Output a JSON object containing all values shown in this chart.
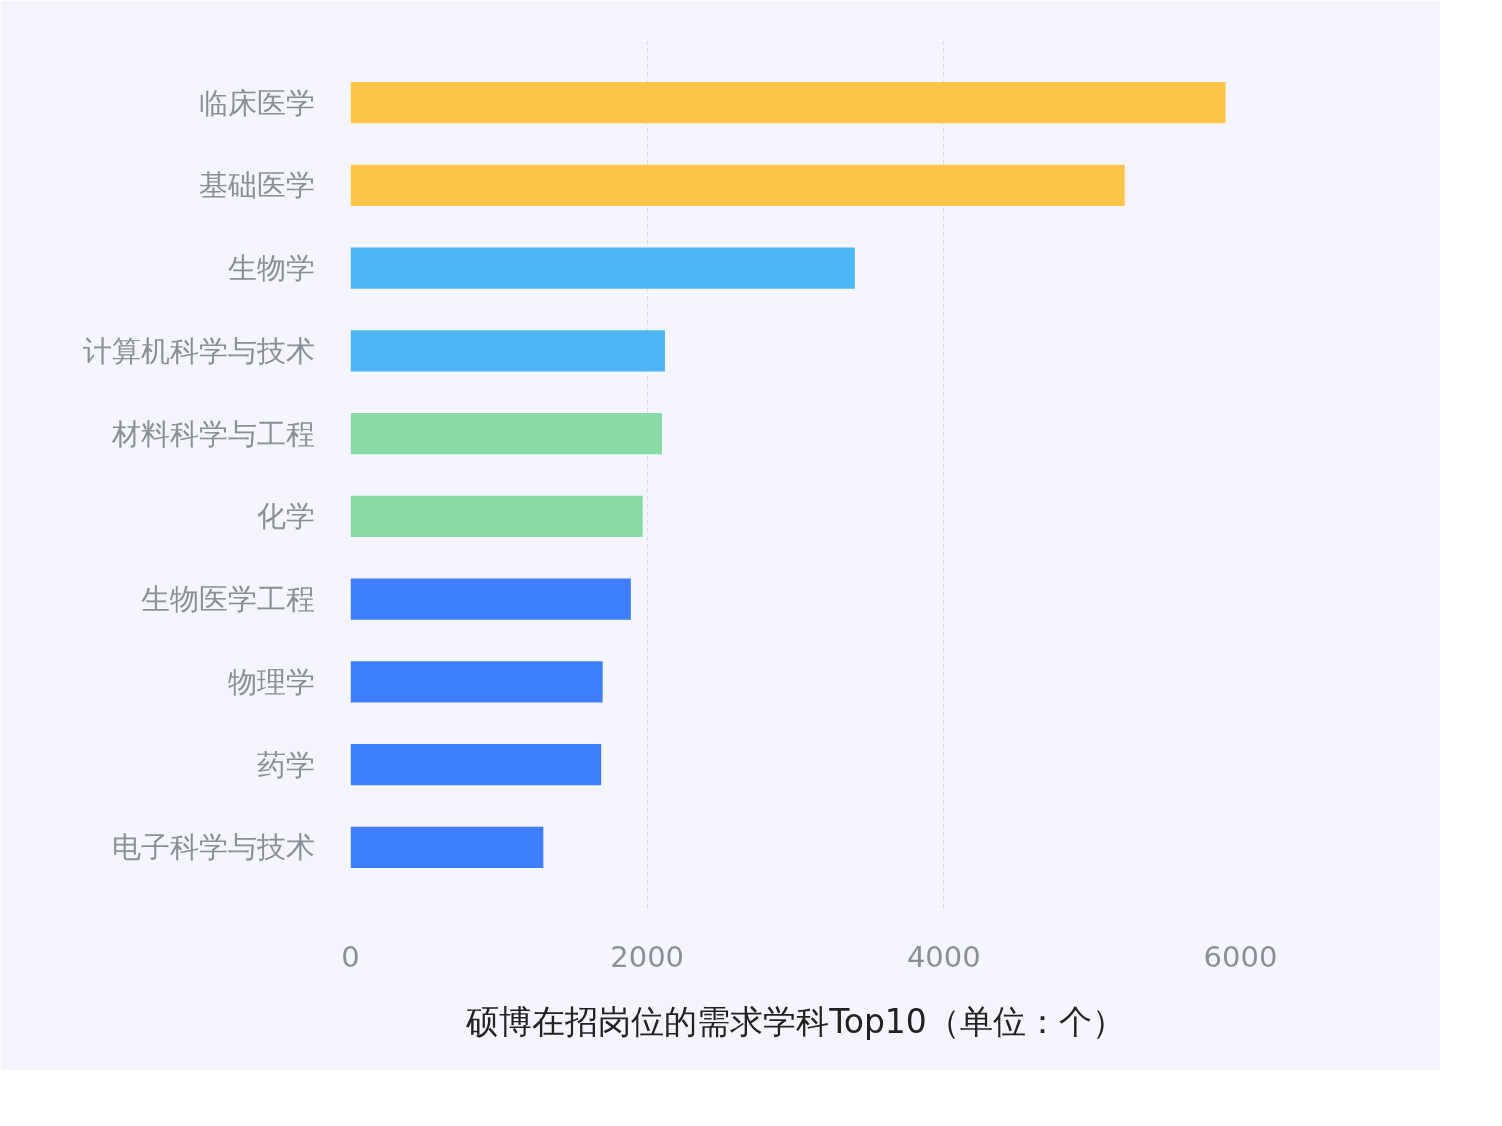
{
  "chart_data": {
    "type": "bar",
    "orientation": "horizontal",
    "title": "硕博在招岗位的需求学科Top10（单位：个）",
    "categories": [
      "临床医学",
      "基础医学",
      "生物学",
      "计算机科学与技术",
      "材料科学与工程",
      "化学",
      "生物医学工程",
      "物理学",
      "药学",
      "电子科学与技术"
    ],
    "values": [
      5900,
      5220,
      3400,
      2120,
      2100,
      1970,
      1890,
      1700,
      1690,
      1300
    ],
    "colors": [
      "#ffc44a",
      "#ffc44a",
      "#4db6f5",
      "#4db6f5",
      "#88dba4",
      "#88dba4",
      "#3f7fff",
      "#3f7fff",
      "#3f7fff",
      "#3f7fff"
    ],
    "xlim": [
      0,
      6000
    ],
    "xticks": [
      0,
      2000,
      4000,
      6000
    ],
    "grid": "x"
  }
}
